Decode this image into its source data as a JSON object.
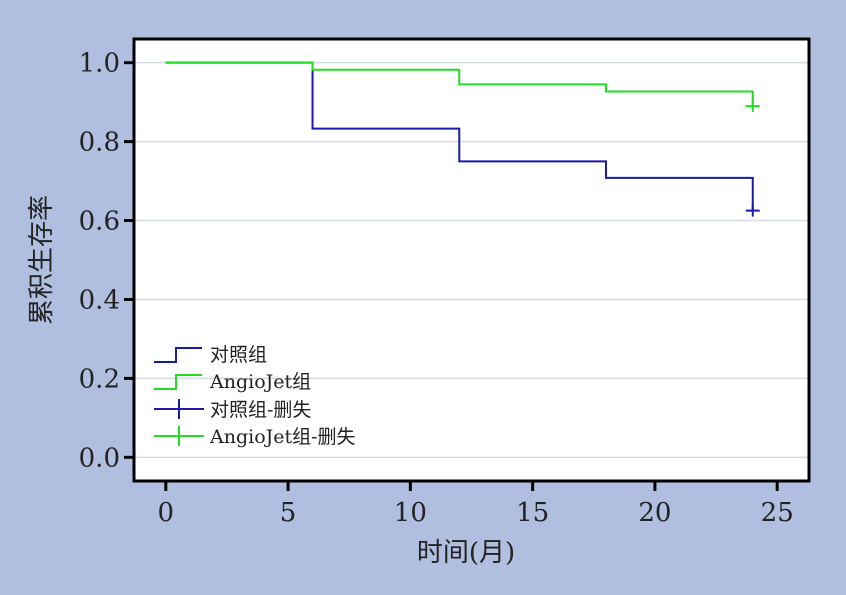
{
  "chart_data": {
    "type": "line",
    "subtype": "kaplan-meier-step",
    "title": "",
    "xlabel": "时间(月)",
    "ylabel": "累积生存率",
    "xlim": [
      -1.3,
      26.3
    ],
    "ylim": [
      -0.06,
      1.06
    ],
    "x_ticks": [
      0,
      5,
      10,
      15,
      20,
      25
    ],
    "y_ticks": [
      0.0,
      0.2,
      0.4,
      0.6,
      0.8,
      1.0
    ],
    "x_tick_labels": [
      "0",
      "5",
      "10",
      "15",
      "20",
      "25"
    ],
    "y_tick_labels": [
      "0.0",
      "0.2",
      "0.4",
      "0.6",
      "0.8",
      "1.0"
    ],
    "grid": "horizontal",
    "legend_position": "bottom-left",
    "series": [
      {
        "name": "对照组",
        "color": "#1a1aa6",
        "steps": [
          [
            0,
            1.0
          ],
          [
            6,
            0.833
          ],
          [
            12,
            0.75
          ],
          [
            18,
            0.708
          ],
          [
            24,
            0.625
          ]
        ],
        "censor_x": 24,
        "censor_y": 0.625
      },
      {
        "name": "AngioJet组",
        "color": "#22dd22",
        "steps": [
          [
            0,
            1.0
          ],
          [
            6,
            0.982
          ],
          [
            12,
            0.945
          ],
          [
            18,
            0.927
          ],
          [
            24,
            0.89
          ]
        ],
        "censor_x": 24,
        "censor_y": 0.89
      }
    ],
    "legend": [
      {
        "label": "对照组",
        "kind": "step",
        "color": "#1a1aa6"
      },
      {
        "label": "AngioJet组",
        "kind": "step",
        "color": "#22dd22"
      },
      {
        "label": "对照组-删失",
        "kind": "censor",
        "color": "#1a1aa6"
      },
      {
        "label": "AngioJet组-删失",
        "kind": "censor",
        "color": "#22dd22"
      }
    ]
  }
}
